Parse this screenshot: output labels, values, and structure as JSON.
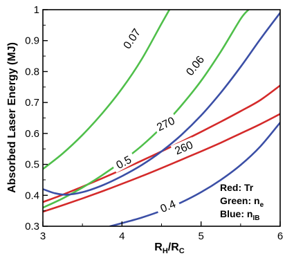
{
  "chart_data": {
    "type": "line",
    "xlabel": {
      "main": "R",
      "sub1": "H",
      "sep": "/R",
      "sub2": "C"
    },
    "ylabel": "Absorbed Laser Energy (MJ)",
    "xlim": [
      3,
      6
    ],
    "ylim": [
      0.3,
      1.0
    ],
    "xticks": [
      "3",
      "4",
      "5",
      "6"
    ],
    "yticks": [
      "0.3",
      "0.4",
      "0.5",
      "0.6",
      "0.7",
      "0.8",
      "0.9",
      "1"
    ],
    "grid": false,
    "legend": {
      "placement": "bottom-right",
      "entries": [
        {
          "name": "Red",
          "label": "Tr",
          "sub": ""
        },
        {
          "name": "Green",
          "label": "n",
          "sub": "e"
        },
        {
          "name": "Blue",
          "label": "n",
          "sub": "IB"
        }
      ]
    },
    "colors": {
      "red": "#d42a2a",
      "green": "#4fbf4a",
      "blue": "#3b4fa6"
    },
    "series": [
      {
        "group": "Tr",
        "color": "red",
        "label": "270",
        "label_at": [
          4.55,
          0.632
        ],
        "x": [
          3.0,
          3.25,
          3.5,
          3.75,
          4.0,
          4.25,
          4.5,
          4.75,
          5.0,
          5.25,
          5.5,
          5.75,
          6.0
        ],
        "y": [
          0.378,
          0.402,
          0.428,
          0.455,
          0.483,
          0.512,
          0.542,
          0.573,
          0.605,
          0.638,
          0.672,
          0.708,
          0.755
        ]
      },
      {
        "group": "Tr",
        "color": "red",
        "label": "260",
        "label_at": [
          4.78,
          0.555
        ],
        "x": [
          3.0,
          3.25,
          3.5,
          3.75,
          4.0,
          4.25,
          4.5,
          4.75,
          5.0,
          5.25,
          5.5,
          5.75,
          6.0
        ],
        "y": [
          0.347,
          0.368,
          0.39,
          0.413,
          0.437,
          0.462,
          0.488,
          0.515,
          0.542,
          0.57,
          0.6,
          0.63,
          0.663
        ]
      },
      {
        "group": "ne",
        "color": "green",
        "label": "0.07",
        "label_at": [
          4.12,
          0.907
        ],
        "x": [
          3.0,
          3.25,
          3.5,
          3.75,
          4.0,
          4.25,
          4.5,
          4.6
        ],
        "y": [
          0.485,
          0.535,
          0.595,
          0.665,
          0.745,
          0.84,
          0.955,
          1.0
        ]
      },
      {
        "group": "ne",
        "color": "green",
        "label": "0.06",
        "label_at": [
          4.92,
          0.82
        ],
        "x": [
          3.0,
          3.25,
          3.5,
          3.75,
          4.0,
          4.25,
          4.5,
          4.75,
          5.0,
          5.25,
          5.5,
          5.6
        ],
        "y": [
          0.36,
          0.39,
          0.425,
          0.465,
          0.51,
          0.56,
          0.62,
          0.69,
          0.77,
          0.865,
          0.97,
          1.0
        ]
      },
      {
        "group": "nIB",
        "color": "blue",
        "label": "0.5",
        "label_at": [
          4.02,
          0.508
        ],
        "x": [
          3.0,
          3.15,
          3.3,
          3.5,
          3.75,
          4.0,
          4.25,
          4.5,
          4.75,
          5.0,
          5.25,
          5.5,
          5.75,
          6.0
        ],
        "y": [
          0.42,
          0.407,
          0.402,
          0.41,
          0.432,
          0.462,
          0.498,
          0.542,
          0.595,
          0.658,
          0.732,
          0.815,
          0.905,
          0.99
        ]
      },
      {
        "group": "nIB",
        "color": "blue",
        "label": "0.4",
        "label_at": [
          4.58,
          0.366
        ],
        "x": [
          3.85,
          4.0,
          4.25,
          4.5,
          4.75,
          5.0,
          5.25,
          5.5,
          5.75,
          6.0
        ],
        "y": [
          0.3,
          0.31,
          0.328,
          0.35,
          0.377,
          0.41,
          0.45,
          0.498,
          0.558,
          0.635
        ]
      }
    ]
  }
}
